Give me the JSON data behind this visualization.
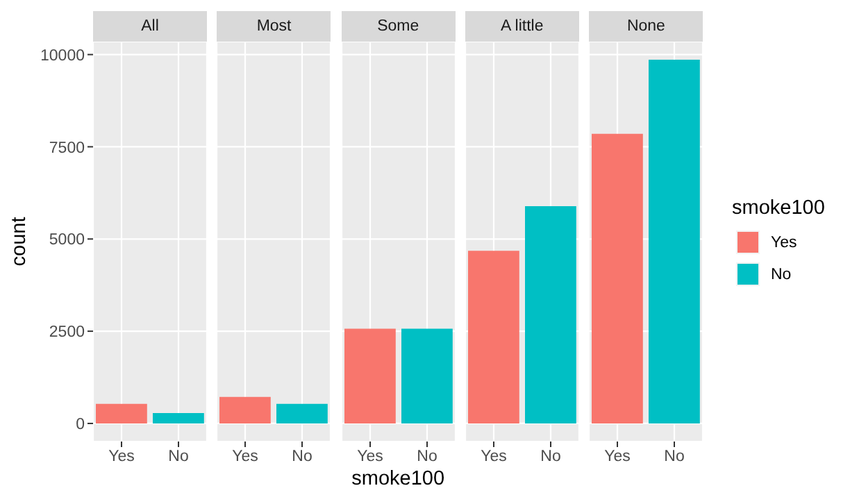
{
  "chart_data": [
    {
      "type": "bar",
      "title": "All",
      "categories": [
        "Yes",
        "No"
      ],
      "series": [
        {
          "color": "#f8766d",
          "values": [
            530,
            null
          ]
        },
        {
          "color": "#00bfc4",
          "values": [
            null,
            280
          ]
        }
      ],
      "ylim": [
        -490,
        10350
      ],
      "yticks": [
        0,
        2500,
        5000,
        7500,
        10000
      ],
      "grid": true,
      "ylabel": "count"
    },
    {
      "type": "bar",
      "title": "Most",
      "categories": [
        "Yes",
        "No"
      ],
      "series": [
        {
          "color": "#f8766d",
          "values": [
            720,
            null
          ]
        },
        {
          "color": "#00bfc4",
          "values": [
            null,
            530
          ]
        }
      ],
      "ylim": [
        -490,
        10350
      ],
      "yticks": [
        0,
        2500,
        5000,
        7500,
        10000
      ],
      "grid": true,
      "tick_labels": "x"
    },
    {
      "type": "bar",
      "title": "Some",
      "categories": [
        "Yes",
        "No"
      ],
      "series": [
        {
          "color": "#f8766d",
          "values": [
            2570,
            null
          ]
        },
        {
          "color": "#00bfc4",
          "values": [
            null,
            2570
          ]
        }
      ],
      "ylim": [
        -490,
        10350
      ],
      "yticks": [
        0,
        2500,
        5000,
        7500,
        10000
      ],
      "grid": true,
      "tick_labels": "x",
      "xlabel": "smoke100"
    },
    {
      "type": "bar",
      "title": "A little",
      "categories": [
        "Yes",
        "No"
      ],
      "series": [
        {
          "color": "#f8766d",
          "values": [
            4680,
            null
          ]
        },
        {
          "color": "#00bfc4",
          "values": [
            null,
            5890
          ]
        }
      ],
      "ylim": [
        -490,
        10350
      ],
      "yticks": [
        0,
        2500,
        5000,
        7500,
        10000
      ],
      "grid": true,
      "tick_labels": "x"
    },
    {
      "type": "bar",
      "title": "None",
      "categories": [
        "Yes",
        "No"
      ],
      "series": [
        {
          "name": "Yes",
          "color": "#f8766d",
          "values": [
            7850,
            null
          ]
        },
        {
          "name": "No",
          "color": "#00bfc4",
          "values": [
            null,
            9860
          ]
        }
      ],
      "ylim": [
        -490,
        10350
      ],
      "yticks": [
        0,
        2500,
        5000,
        7500,
        10000
      ],
      "grid": true,
      "tick_labels": "x",
      "legend": "right",
      "legend_title": "smoke100"
    }
  ]
}
